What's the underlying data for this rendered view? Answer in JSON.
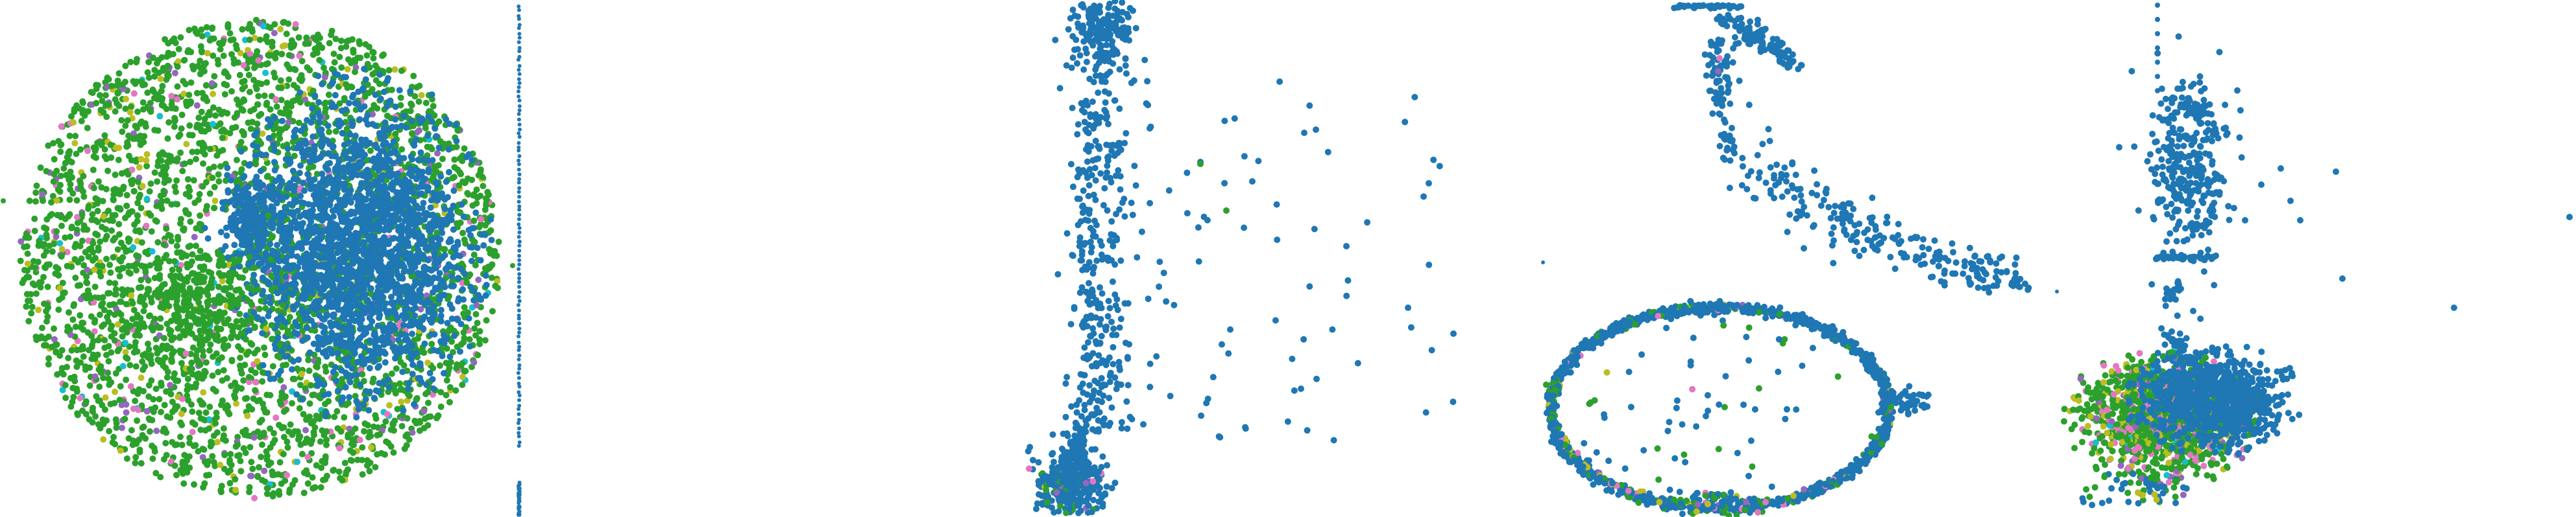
{
  "palette": {
    "blue": "#1f77b4",
    "green": "#2ca02c",
    "olive": "#bcbd22",
    "pink": "#e377c2",
    "purple": "#9467bd",
    "cyan": "#17becf",
    "background": "#ffffff"
  },
  "chart_data": [
    {
      "type": "scatter",
      "panel": 1,
      "axes": "none",
      "grid": false,
      "legend": "none",
      "description_of_shape": "filled disk with a dense blue core on the right and mixed colors around the rim",
      "series": [
        {
          "color": "blue",
          "share": 0.45
        },
        {
          "color": "green",
          "share": 0.35
        },
        {
          "color": "olive",
          "share": 0.08
        },
        {
          "color": "pink",
          "share": 0.05
        },
        {
          "color": "purple",
          "share": 0.05
        },
        {
          "color": "cyan",
          "share": 0.02
        }
      ]
    },
    {
      "type": "scatter",
      "panel": 2,
      "axes": "none",
      "grid": false,
      "legend": "none",
      "series": [
        {
          "color": "blue",
          "share": 1.0
        }
      ]
    },
    {
      "type": "scatter",
      "panel": 3,
      "axes": "none",
      "grid": false,
      "legend": "none",
      "series": [
        {
          "color": "blue",
          "share": 0.85
        },
        {
          "color": "green",
          "share": 0.08
        },
        {
          "color": "olive",
          "share": 0.03
        },
        {
          "color": "pink",
          "share": 0.02
        },
        {
          "color": "purple",
          "share": 0.02
        }
      ]
    },
    {
      "type": "scatter",
      "panel": 4,
      "axes": "none",
      "grid": false,
      "legend": "none",
      "series": [
        {
          "color": "blue",
          "share": 0.7
        },
        {
          "color": "green",
          "share": 0.2
        },
        {
          "color": "olive",
          "share": 0.04
        },
        {
          "color": "pink",
          "share": 0.04
        },
        {
          "color": "purple",
          "share": 0.02
        }
      ]
    },
    {
      "type": "scatter",
      "panel": 5,
      "axes": "none",
      "grid": false,
      "legend": "none",
      "series": [
        {
          "color": "blue",
          "share": 0.6
        },
        {
          "color": "green",
          "share": 0.28
        },
        {
          "color": "olive",
          "share": 0.05
        },
        {
          "color": "pink",
          "share": 0.04
        },
        {
          "color": "purple",
          "share": 0.02
        },
        {
          "color": "cyan",
          "share": 0.01
        }
      ]
    }
  ]
}
